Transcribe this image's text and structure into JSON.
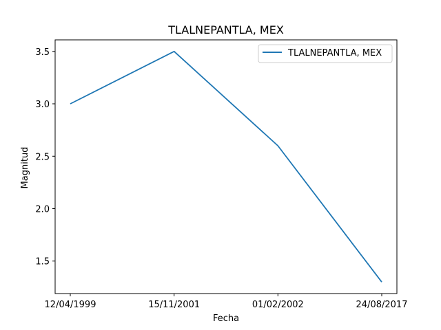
{
  "chart_data": {
    "type": "line",
    "title": "TLALNEPANTLA, MEX",
    "xlabel": "Fecha",
    "ylabel": "Magnitud",
    "categories": [
      "12/04/1999",
      "15/11/2001",
      "01/02/2002",
      "24/08/2017"
    ],
    "series": [
      {
        "name": "TLALNEPANTLA, MEX",
        "values": [
          3.0,
          3.5,
          2.6,
          1.3
        ],
        "color": "#1f77b4"
      }
    ],
    "yticks": [
      "1.5",
      "2.0",
      "2.5",
      "3.0",
      "3.5"
    ],
    "ylim": [
      1.19,
      3.61
    ],
    "grid": false,
    "legend": "top-right"
  }
}
